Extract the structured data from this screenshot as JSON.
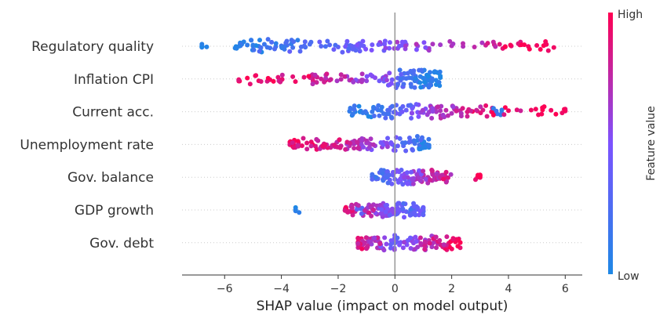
{
  "chart_data": {
    "type": "scatter",
    "subtype": "shap-beeswarm",
    "xlabel": "SHAP value (impact on model output)",
    "xlim": [
      -7.5,
      6.6
    ],
    "xticks": [
      -6,
      -4,
      -2,
      0,
      2,
      4,
      6
    ],
    "xtick_labels": [
      "−6",
      "−4",
      "−2",
      "0",
      "2",
      "4",
      "6"
    ],
    "features": [
      {
        "name": "Regulatory quality",
        "range": [
          -6.8,
          5.6
        ],
        "points": [
          [
            -6.8,
            0.1
          ],
          [
            -5.6,
            0.0
          ],
          [
            -5.4,
            0.05
          ],
          [
            -5.2,
            0.1
          ],
          [
            -5.0,
            0.15
          ],
          [
            -4.8,
            0.1
          ],
          [
            -4.6,
            0.15
          ],
          [
            -4.4,
            0.2
          ],
          [
            -4.2,
            0.2
          ],
          [
            -4.0,
            0.2
          ],
          [
            -3.8,
            0.25
          ],
          [
            -3.6,
            0.2
          ],
          [
            -3.3,
            0.25
          ],
          [
            -3.0,
            0.25
          ],
          [
            -2.6,
            0.3
          ],
          [
            -2.3,
            0.3
          ],
          [
            -2.0,
            0.35
          ],
          [
            -1.7,
            0.35
          ],
          [
            -1.4,
            0.4
          ],
          [
            -1.1,
            0.4
          ],
          [
            -0.8,
            0.45
          ],
          [
            -0.5,
            0.5
          ],
          [
            -0.2,
            0.5
          ],
          [
            0.1,
            0.55
          ],
          [
            0.4,
            0.55
          ],
          [
            0.8,
            0.6
          ],
          [
            1.2,
            0.6
          ],
          [
            1.6,
            0.65
          ],
          [
            2.0,
            0.7
          ],
          [
            2.4,
            0.7
          ],
          [
            2.8,
            0.75
          ],
          [
            3.2,
            0.8
          ],
          [
            3.5,
            0.85
          ],
          [
            3.8,
            0.9
          ],
          [
            4.1,
            0.9
          ],
          [
            4.4,
            0.95
          ],
          [
            4.7,
            0.95
          ],
          [
            5.0,
            0.95
          ],
          [
            5.3,
            1.0
          ],
          [
            5.6,
            0.95
          ]
        ]
      },
      {
        "name": "Inflation CPI",
        "range": [
          -5.5,
          1.6
        ],
        "points": [
          [
            -5.5,
            1.0
          ],
          [
            -5.2,
            1.0
          ],
          [
            -4.8,
            0.95
          ],
          [
            -4.4,
            0.95
          ],
          [
            -4.0,
            0.9
          ],
          [
            -3.6,
            0.9
          ],
          [
            -3.2,
            0.9
          ],
          [
            -2.9,
            0.85
          ],
          [
            -2.6,
            0.8
          ],
          [
            -2.3,
            0.8
          ],
          [
            -1.9,
            0.75
          ],
          [
            -1.6,
            0.7
          ],
          [
            -1.3,
            0.65
          ],
          [
            -1.0,
            0.6
          ],
          [
            -0.7,
            0.55
          ],
          [
            -0.4,
            0.5
          ],
          [
            -0.1,
            0.45
          ],
          [
            0.1,
            0.35
          ],
          [
            0.2,
            0.3
          ],
          [
            0.3,
            0.25
          ],
          [
            0.4,
            0.2
          ],
          [
            0.5,
            0.2
          ],
          [
            0.6,
            0.15
          ],
          [
            0.7,
            0.15
          ],
          [
            0.8,
            0.1
          ],
          [
            0.9,
            0.1
          ],
          [
            1.0,
            0.05
          ],
          [
            1.1,
            0.1
          ],
          [
            1.2,
            0.05
          ],
          [
            1.3,
            0.1
          ],
          [
            1.45,
            0.05
          ],
          [
            1.6,
            0.0
          ]
        ]
      },
      {
        "name": "Current acc.",
        "range": [
          -1.6,
          6.0
        ],
        "points": [
          [
            -1.6,
            0.1
          ],
          [
            -1.4,
            0.05
          ],
          [
            -1.2,
            0.1
          ],
          [
            -1.0,
            0.1
          ],
          [
            -0.8,
            0.15
          ],
          [
            -0.6,
            0.15
          ],
          [
            -0.4,
            0.2
          ],
          [
            -0.2,
            0.25
          ],
          [
            0.0,
            0.3
          ],
          [
            0.2,
            0.35
          ],
          [
            0.4,
            0.4
          ],
          [
            0.6,
            0.45
          ],
          [
            0.8,
            0.5
          ],
          [
            1.0,
            0.55
          ],
          [
            1.2,
            0.6
          ],
          [
            1.4,
            0.65
          ],
          [
            1.6,
            0.7
          ],
          [
            1.8,
            0.75
          ],
          [
            2.0,
            0.7
          ],
          [
            2.3,
            0.8
          ],
          [
            2.6,
            0.85
          ],
          [
            2.9,
            0.9
          ],
          [
            3.1,
            0.85
          ],
          [
            3.4,
            0.9
          ],
          [
            3.6,
            0.2
          ],
          [
            4.0,
            0.95
          ],
          [
            4.3,
            0.9
          ],
          [
            4.8,
            0.95
          ],
          [
            5.2,
            1.0
          ],
          [
            5.5,
            0.95
          ],
          [
            6.0,
            1.0
          ]
        ]
      },
      {
        "name": "Unemployment rate",
        "range": [
          -3.7,
          1.2
        ],
        "points": [
          [
            -3.7,
            0.95
          ],
          [
            -3.4,
            0.9
          ],
          [
            -3.1,
            0.9
          ],
          [
            -2.8,
            0.85
          ],
          [
            -2.5,
            0.85
          ],
          [
            -2.2,
            0.8
          ],
          [
            -1.9,
            0.8
          ],
          [
            -1.6,
            0.75
          ],
          [
            -1.3,
            0.7
          ],
          [
            -1.0,
            0.65
          ],
          [
            -0.7,
            0.6
          ],
          [
            -0.4,
            0.55
          ],
          [
            -0.1,
            0.5
          ],
          [
            0.1,
            0.4
          ],
          [
            0.3,
            0.3
          ],
          [
            0.5,
            0.25
          ],
          [
            0.7,
            0.2
          ],
          [
            0.9,
            0.15
          ],
          [
            1.0,
            0.1
          ],
          [
            1.2,
            0.05
          ]
        ]
      },
      {
        "name": "Gov. balance",
        "range": [
          -0.8,
          3.0
        ],
        "points": [
          [
            -0.8,
            0.2
          ],
          [
            -0.6,
            0.25
          ],
          [
            -0.4,
            0.3
          ],
          [
            -0.2,
            0.35
          ],
          [
            0.0,
            0.4
          ],
          [
            0.2,
            0.45
          ],
          [
            0.4,
            0.5
          ],
          [
            0.6,
            0.55
          ],
          [
            0.8,
            0.6
          ],
          [
            1.0,
            0.65
          ],
          [
            1.2,
            0.7
          ],
          [
            1.4,
            0.75
          ],
          [
            1.6,
            0.8
          ],
          [
            1.8,
            0.8
          ],
          [
            3.0,
            0.95
          ]
        ]
      },
      {
        "name": "GDP growth",
        "range": [
          -3.5,
          1.0
        ],
        "points": [
          [
            -3.5,
            0.05
          ],
          [
            -1.6,
            0.85
          ],
          [
            -1.4,
            0.8
          ],
          [
            -1.2,
            0.3
          ],
          [
            -1.0,
            0.75
          ],
          [
            -0.8,
            0.7
          ],
          [
            -0.6,
            0.65
          ],
          [
            -0.4,
            0.55
          ],
          [
            -0.2,
            0.5
          ],
          [
            0.0,
            0.45
          ],
          [
            0.2,
            0.4
          ],
          [
            0.4,
            0.35
          ],
          [
            0.6,
            0.3
          ],
          [
            0.8,
            0.35
          ],
          [
            1.0,
            0.3
          ]
        ]
      },
      {
        "name": "Gov. debt",
        "range": [
          -1.3,
          2.3
        ],
        "points": [
          [
            -1.3,
            0.85
          ],
          [
            -1.1,
            0.8
          ],
          [
            -0.9,
            0.75
          ],
          [
            -0.7,
            0.7
          ],
          [
            -0.5,
            0.6
          ],
          [
            -0.3,
            0.55
          ],
          [
            -0.1,
            0.5
          ],
          [
            0.0,
            0.4
          ],
          [
            0.2,
            0.45
          ],
          [
            0.4,
            0.55
          ],
          [
            0.6,
            0.6
          ],
          [
            0.8,
            0.65
          ],
          [
            1.0,
            0.7
          ],
          [
            1.2,
            0.75
          ],
          [
            1.4,
            0.8
          ],
          [
            1.6,
            0.85
          ],
          [
            1.9,
            0.9
          ],
          [
            2.1,
            0.9
          ],
          [
            2.3,
            0.95
          ]
        ]
      }
    ],
    "colorbar": {
      "label": "Feature value",
      "high_label": "High",
      "low_label": "Low",
      "low_color": "#1e88e5",
      "mid_color": "#7c52ff",
      "high_color": "#ff0052"
    },
    "grid": false,
    "zero_line_color": "#999999"
  }
}
